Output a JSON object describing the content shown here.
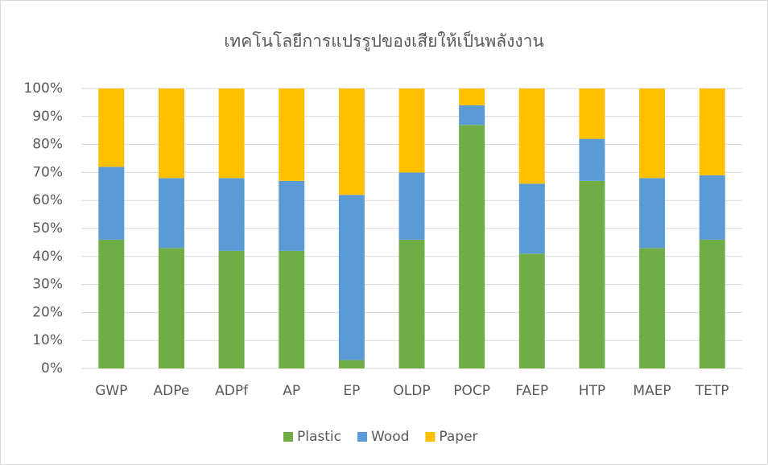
{
  "chart_data": {
    "type": "stacked_bar",
    "title": "เทคโนโลยีการแปรรูปของเสียให้เป็นพลังงาน",
    "categories": [
      "GWP",
      "ADPe",
      "ADPf",
      "AP",
      "EP",
      "OLDP",
      "POCP",
      "FAEP",
      "HTP",
      "MAEP",
      "TETP"
    ],
    "series": [
      {
        "name": "Plastic",
        "color": "#70ad47",
        "values": [
          46,
          43,
          42,
          42,
          3,
          46,
          87,
          41,
          67,
          43,
          46
        ]
      },
      {
        "name": "Wood",
        "color": "#5b9bd5",
        "values": [
          26,
          25,
          26,
          25,
          59,
          24,
          7,
          25,
          15,
          25,
          23
        ]
      },
      {
        "name": "Paper",
        "color": "#ffc000",
        "values": [
          28,
          32,
          32,
          33,
          38,
          30,
          6,
          34,
          18,
          32,
          31
        ]
      }
    ],
    "ylim": [
      0,
      100
    ],
    "yticks": [
      {
        "value": 0,
        "label": "0%"
      },
      {
        "value": 10,
        "label": "10%"
      },
      {
        "value": 20,
        "label": "20%"
      },
      {
        "value": 30,
        "label": "30%"
      },
      {
        "value": 40,
        "label": "40%"
      },
      {
        "value": 50,
        "label": "50%"
      },
      {
        "value": 60,
        "label": "60%"
      },
      {
        "value": 70,
        "label": "70%"
      },
      {
        "value": 80,
        "label": "80%"
      },
      {
        "value": 90,
        "label": "90%"
      },
      {
        "value": 100,
        "label": "100%"
      }
    ],
    "grid": true,
    "legend": "bottom"
  }
}
